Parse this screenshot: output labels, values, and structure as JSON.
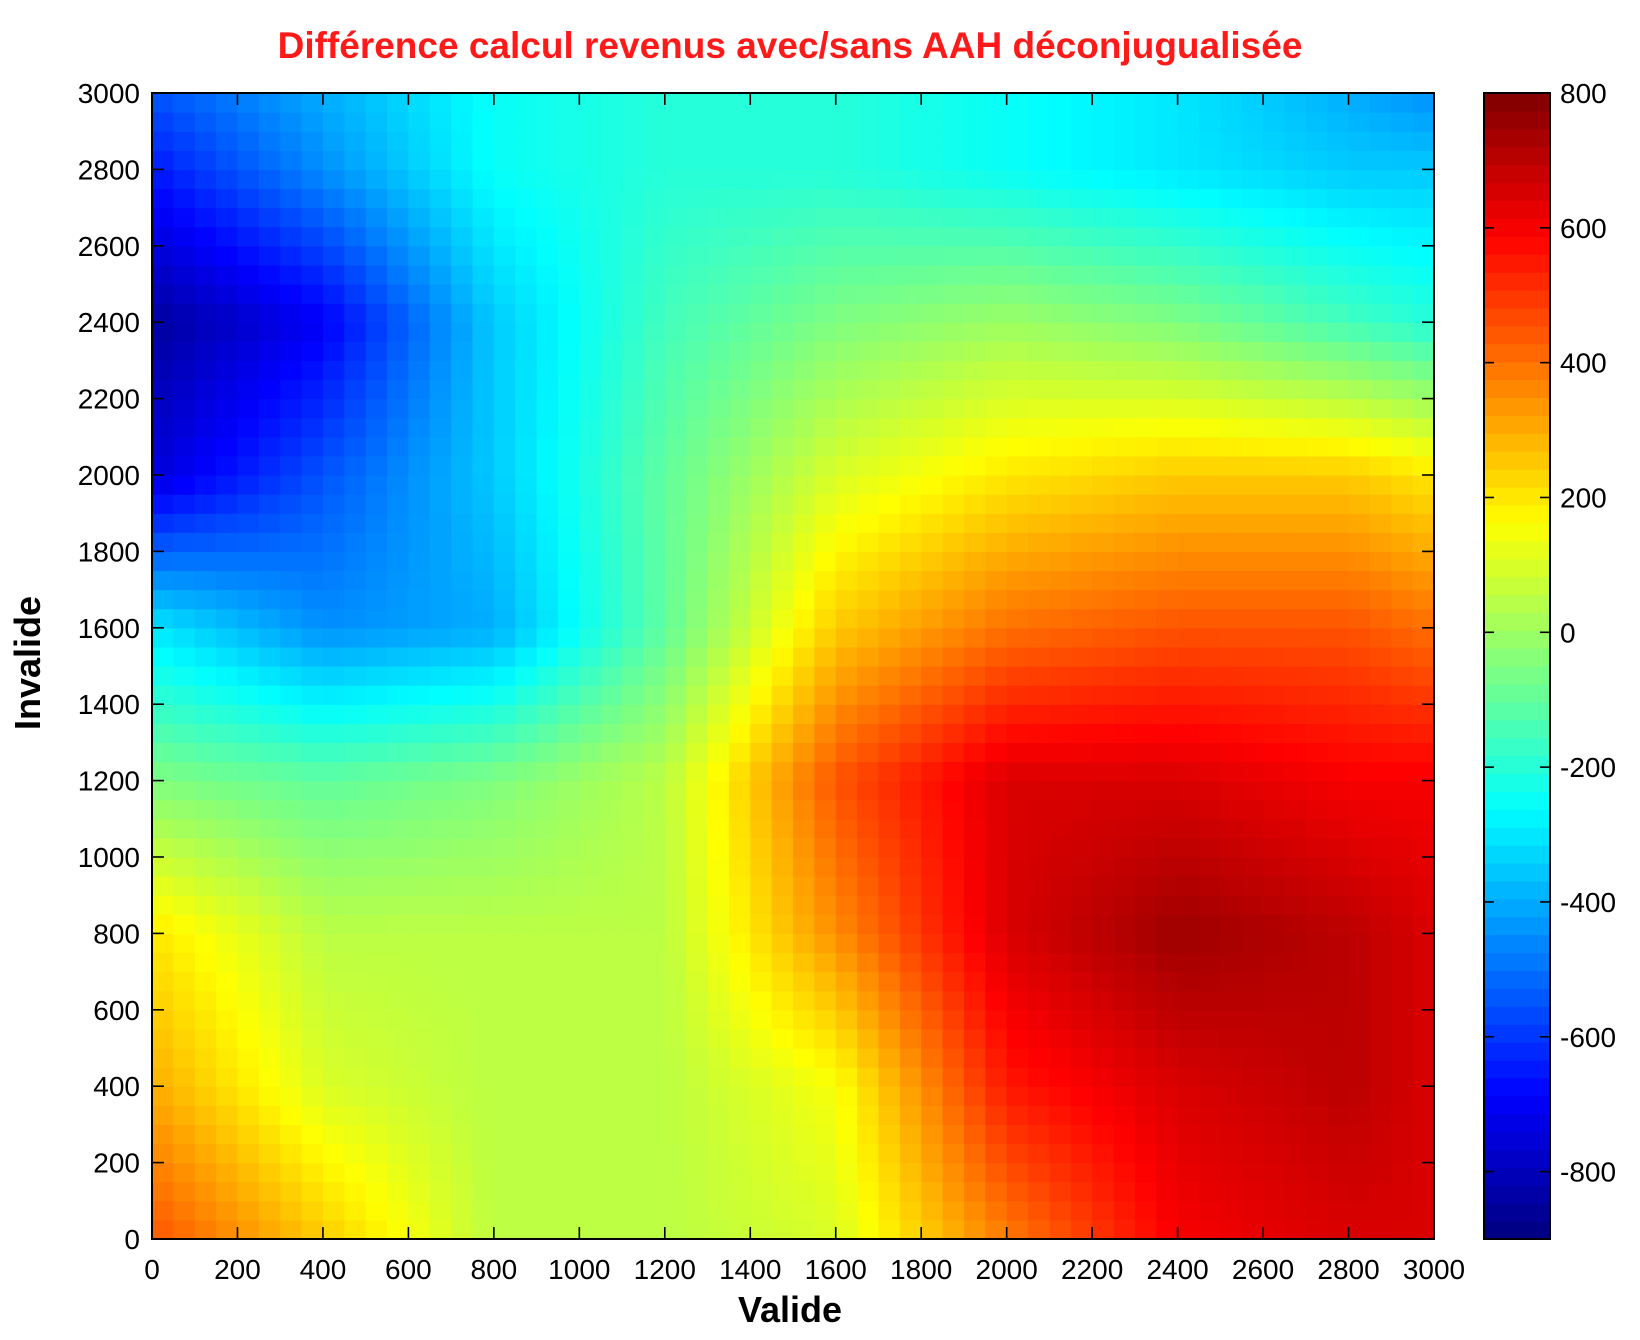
{
  "chart_data": {
    "type": "heatmap",
    "title": "Différence calcul revenus avec/sans AAH déconjugualisée",
    "xlabel": "Valide",
    "ylabel": "Invalide",
    "xlim": [
      0,
      3000
    ],
    "ylim": [
      0,
      3000
    ],
    "xticks": [
      0,
      200,
      400,
      600,
      800,
      1000,
      1200,
      1400,
      1600,
      1800,
      2000,
      2200,
      2400,
      2600,
      2800,
      3000
    ],
    "yticks": [
      0,
      200,
      400,
      600,
      800,
      1000,
      1200,
      1400,
      1600,
      1800,
      2000,
      2200,
      2400,
      2600,
      2800,
      3000
    ],
    "colormap": "jet",
    "colorbar": {
      "range": [
        -900,
        800
      ],
      "ticks": [
        800,
        600,
        400,
        200,
        0,
        -200,
        -400,
        -600,
        -800
      ]
    },
    "grid": false,
    "x": [
      0,
      400,
      800,
      1200,
      1600,
      2000,
      2400,
      2800,
      3000
    ],
    "y": [
      0,
      400,
      800,
      1200,
      1600,
      2000,
      2400,
      2800,
      3000
    ],
    "z": [
      [
        450,
        250,
        50,
        50,
        100,
        380,
        600,
        650,
        650
      ],
      [
        300,
        100,
        50,
        50,
        150,
        550,
        650,
        700,
        650
      ],
      [
        200,
        50,
        50,
        50,
        350,
        650,
        750,
        700,
        650
      ],
      [
        -50,
        -100,
        -50,
        50,
        450,
        650,
        650,
        600,
        600
      ],
      [
        -300,
        -450,
        -400,
        -100,
        250,
        400,
        450,
        450,
        400
      ],
      [
        -750,
        -550,
        -350,
        -100,
        100,
        200,
        250,
        250,
        200
      ],
      [
        -850,
        -700,
        -350,
        -150,
        -50,
        0,
        -50,
        -150,
        -200
      ],
      [
        -650,
        -450,
        -250,
        -200,
        -200,
        -250,
        -300,
        -350,
        -350
      ],
      [
        -550,
        -400,
        -250,
        -200,
        -200,
        -250,
        -300,
        -400,
        -450
      ]
    ]
  }
}
